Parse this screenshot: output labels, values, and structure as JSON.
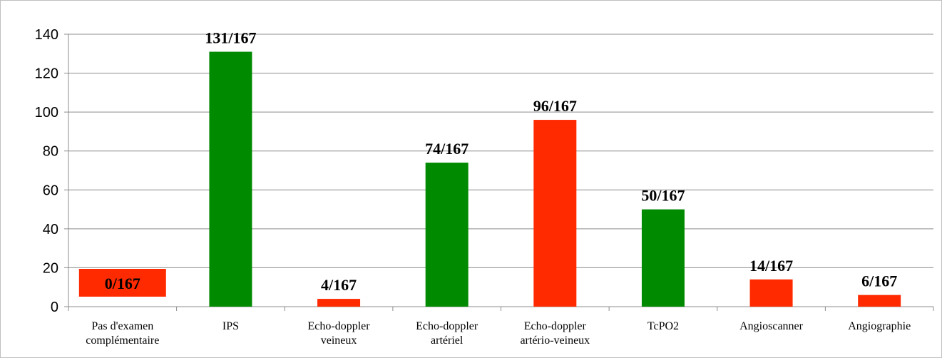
{
  "chart_data": {
    "type": "bar",
    "title": "",
    "xlabel": "",
    "ylabel": "",
    "ylim": [
      0,
      140
    ],
    "yticks": [
      0,
      20,
      40,
      60,
      80,
      100,
      120,
      140
    ],
    "grid": true,
    "categories": [
      [
        "Pas d'examen",
        "complémentaire"
      ],
      [
        "IPS"
      ],
      [
        "Echo-doppler",
        "veineux"
      ],
      [
        "Echo-doppler",
        "artériel"
      ],
      [
        "Echo-doppler",
        "artério-veineux"
      ],
      [
        "TcPO2"
      ],
      [
        "Angioscanner"
      ],
      [
        "Angiographie"
      ]
    ],
    "values": [
      0,
      131,
      4,
      74,
      96,
      50,
      14,
      6
    ],
    "data_labels": [
      "0/167",
      "131/167",
      "4/167",
      "74/167",
      "96/167",
      "50/167",
      "14/167",
      "6/167"
    ],
    "bar_colors": [
      "#ff2a00",
      "#008a00",
      "#ff2a00",
      "#008a00",
      "#ff2a00",
      "#008a00",
      "#ff2a00",
      "#ff2a00"
    ],
    "label_box_color": "#ff2a00"
  }
}
